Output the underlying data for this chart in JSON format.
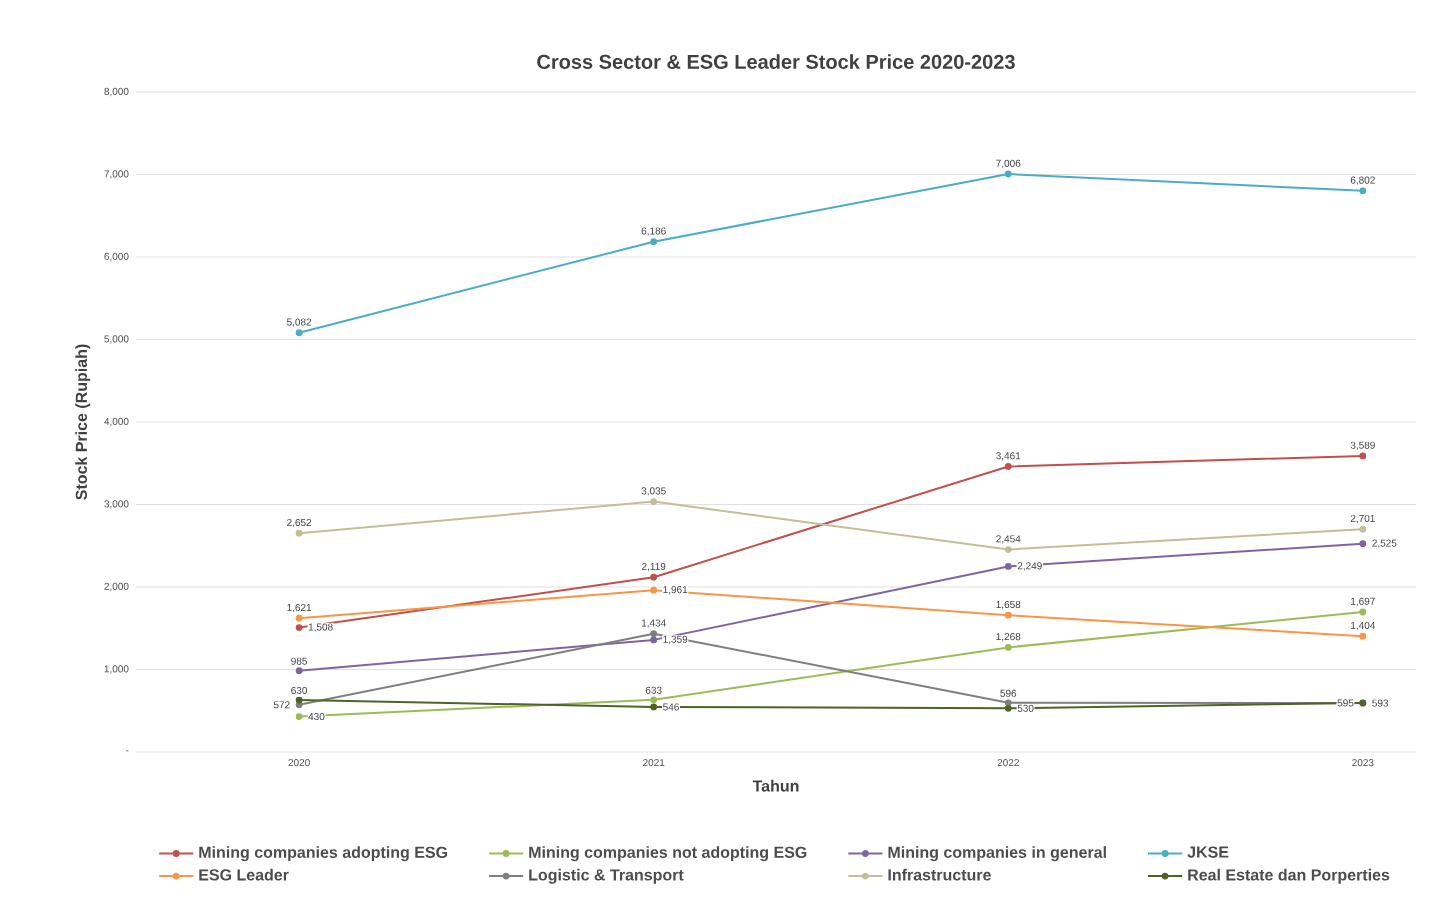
{
  "chart_data": {
    "type": "line",
    "title": "Cross Sector & ESG Leader Stock Price 2020-2023",
    "xlabel": "Tahun",
    "ylabel": "Stock Price (Rupiah)",
    "categories": [
      "2020",
      "2021",
      "2022",
      "2023"
    ],
    "ylim": [
      0,
      8000
    ],
    "yticks": [
      {
        "value": 0,
        "label": "-"
      },
      {
        "value": 1000,
        "label": "1,000"
      },
      {
        "value": 2000,
        "label": "2,000"
      },
      {
        "value": 3000,
        "label": "3,000"
      },
      {
        "value": 4000,
        "label": "4,000"
      },
      {
        "value": 5000,
        "label": "5,000"
      },
      {
        "value": 6000,
        "label": "6,000"
      },
      {
        "value": 7000,
        "label": "7,000"
      },
      {
        "value": 8000,
        "label": "8,000"
      }
    ],
    "grid": "y",
    "legend": "bottom",
    "marker": "circle",
    "line_style": "solid",
    "series": [
      {
        "name": "Mining companies adopting ESG",
        "color": "#c0504d",
        "values": [
          1508,
          2119,
          3461,
          3589
        ],
        "value_labels": [
          "1,508",
          "2,119",
          "3,461",
          "3,589"
        ]
      },
      {
        "name": "Mining companies not adopting ESG",
        "color": "#9bbb59",
        "values": [
          430,
          633,
          1268,
          1697
        ],
        "value_labels": [
          "430",
          "633",
          "1,268",
          "1,697"
        ]
      },
      {
        "name": "Mining companies in general",
        "color": "#8064a2",
        "values": [
          985,
          1359,
          2249,
          2525
        ],
        "value_labels": [
          "985",
          "1,359",
          "2,249",
          "2,525"
        ]
      },
      {
        "name": "JKSE",
        "color": "#4bacc6",
        "values": [
          5082,
          6186,
          7006,
          6802
        ],
        "value_labels": [
          "5,082",
          "6,186",
          "7,006",
          "6,802"
        ]
      },
      {
        "name": "ESG Leader",
        "color": "#f79646",
        "values": [
          1621,
          1961,
          1658,
          1404
        ],
        "value_labels": [
          "1,621",
          "1,961",
          "1,658",
          "1,404"
        ]
      },
      {
        "name": "Logistic & Transport",
        "color": "#7f7f7f",
        "values": [
          572,
          1434,
          596,
          593
        ],
        "value_labels": [
          "572",
          "1,434",
          "596",
          "593"
        ]
      },
      {
        "name": "Infrastructure",
        "color": "#c4bd97",
        "values": [
          2652,
          3035,
          2454,
          2701
        ],
        "value_labels": [
          "2,652",
          "3,035",
          "2,454",
          "2,701"
        ]
      },
      {
        "name": "Real Estate dan Porperties",
        "color": "#4f6228",
        "values": [
          630,
          546,
          530,
          595
        ],
        "value_labels": [
          "630",
          "546",
          "530",
          "595"
        ]
      }
    ]
  }
}
